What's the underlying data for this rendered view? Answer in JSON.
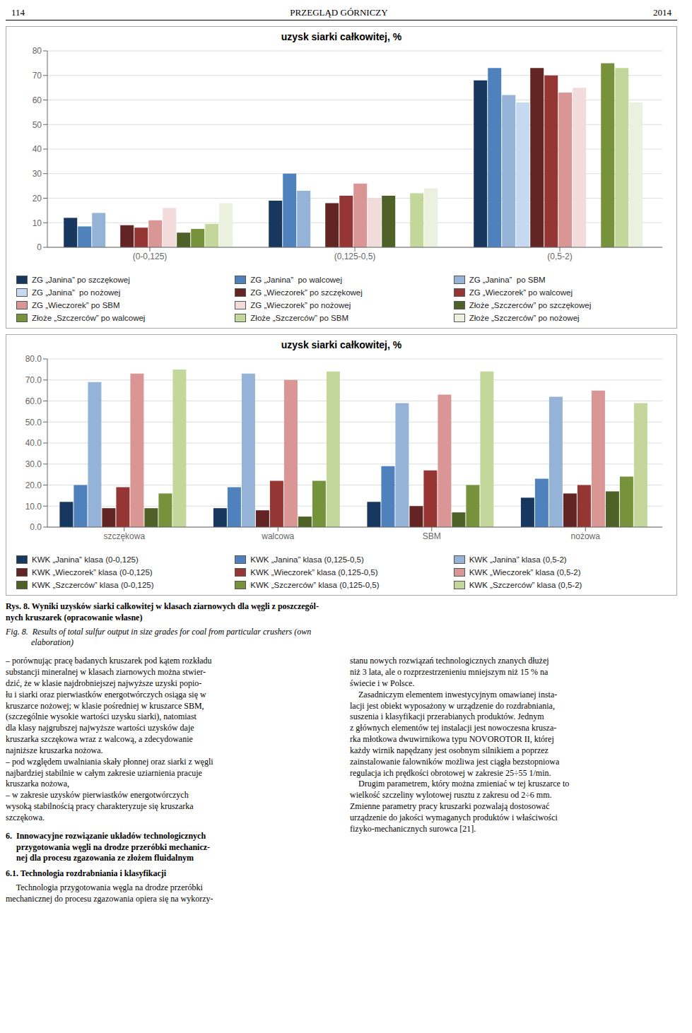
{
  "chart_data": [
    {
      "type": "bar",
      "title": "uzysk siarki całkowitej, %",
      "categories": [
        "(0-0,125)",
        "(0,125-0,5)",
        "(0,5-2)"
      ],
      "series": [
        {
          "name": "ZG „Janina” po szczękowej",
          "color": "#17375E",
          "values": [
            12,
            19,
            68
          ]
        },
        {
          "name": "ZG „Janina”  po walcowej",
          "color": "#4F81BD",
          "values": [
            8.5,
            30,
            73
          ]
        },
        {
          "name": "ZG „Janina”  po SBM",
          "color": "#95B3D7",
          "values": [
            14,
            23,
            62
          ]
        },
        {
          "name": "ZG „Janina”  po nożowej",
          "color": "#C5D9F1",
          "values": [
            null,
            null,
            59
          ]
        },
        {
          "name": "ZG „Wieczorek” po szczękowej",
          "color": "#632523",
          "values": [
            9,
            18,
            73
          ]
        },
        {
          "name": "ZG „Wieczorek” po walcowej",
          "color": "#963634",
          "values": [
            8,
            21,
            70
          ]
        },
        {
          "name": "ZG „Wieczorek” po SBM",
          "color": "#D99694",
          "values": [
            11,
            26,
            63
          ]
        },
        {
          "name": "ZG „Wieczorek” po nożowej",
          "color": "#F2DCDB",
          "values": [
            16,
            20,
            65
          ]
        },
        {
          "name": "Złoże „Szczerców” po szczękowej",
          "color": "#4E6228",
          "values": [
            6,
            21,
            null
          ]
        },
        {
          "name": "Złoże „Szczerców” po walcowej",
          "color": "#76933C",
          "values": [
            7.5,
            null,
            75
          ]
        },
        {
          "name": "Złoże „Szczerców” po SBM",
          "color": "#C4D79B",
          "values": [
            9.5,
            22,
            73
          ]
        },
        {
          "name": "Złoże „Szczerców” po nożowej",
          "color": "#EBF1DE",
          "values": [
            18,
            24,
            59
          ]
        }
      ],
      "ylim": [
        0,
        80
      ],
      "yticks": [
        0,
        10,
        20,
        30,
        40,
        50,
        60,
        70,
        80
      ],
      "grid": true,
      "annotations": [
        "114",
        "PRZEGLĄD GÓRNICZY",
        "2014"
      ]
    },
    {
      "type": "bar",
      "title": "uzysk siarki całkowitej, %",
      "categories": [
        "szczękowa",
        "walcowa",
        "SBM",
        "nożowa"
      ],
      "series": [
        {
          "name": "KWK „Janina” klasa (0-0,125)",
          "color": "#17375E",
          "values": [
            12,
            9,
            12,
            14
          ]
        },
        {
          "name": "KWK „Janina” klasa (0,125-0,5)",
          "color": "#4F81BD",
          "values": [
            20,
            19,
            29,
            23
          ]
        },
        {
          "name": "KWK „Janina” klasa (0,5-2)",
          "color": "#95B3D7",
          "values": [
            69,
            73,
            59,
            62
          ]
        },
        {
          "name": "KWK „Wieczorek” klasa (0-0,125)",
          "color": "#632523",
          "values": [
            9,
            8,
            10,
            16
          ]
        },
        {
          "name": "KWK „Wieczorek” klasa (0,125-0,5)",
          "color": "#963634",
          "values": [
            19,
            22,
            27,
            20
          ]
        },
        {
          "name": "KWK „Wieczorek” klasa (0,5-2)",
          "color": "#D99694",
          "values": [
            73,
            70,
            63,
            65
          ]
        },
        {
          "name": "KWK „Szczerców” klasa (0-0,125)",
          "color": "#4E6228",
          "values": [
            9,
            5,
            7,
            17
          ]
        },
        {
          "name": "KWK „Szczerców” klasa (0,125-0,5)",
          "color": "#76933C",
          "values": [
            16,
            22,
            20,
            24
          ]
        },
        {
          "name": "KWK „Szczerców” klasa (0,5-2)",
          "color": "#C4D79B",
          "values": [
            75,
            74,
            74,
            59
          ]
        }
      ],
      "ylim": [
        0,
        80
      ],
      "yticks": [
        {
          "value": 0,
          "label": "0.0"
        },
        {
          "value": 10,
          "label": "10.0"
        },
        {
          "value": 20,
          "label": "20.0"
        },
        {
          "value": 30,
          "label": "30.0"
        },
        {
          "value": 40,
          "label": "40.0"
        },
        {
          "value": 50,
          "label": "50.0"
        },
        {
          "value": 60,
          "label": "60.0"
        },
        {
          "value": 70,
          "label": "70.0"
        },
        {
          "value": 80,
          "label": "80.0"
        }
      ],
      "grid": true,
      "annotations": [
        "Rys. 8. Wyniki uzysków siarki całkowitej w klasach ziarnowych dla węgli z poszczegól-\nnych kruszarek (opracowanie własne)",
        "Fig. 8.  Results of total sulfur output in size grades for coal from particular crushers (own\n            elaboration)",
        "– porównując pracę badanych kruszarek pod kątem rozkładu\nsubstancji mineralnej w klasach ziarnowych można stwier-\ndzić, że w klasie najdrobniejszej najwyższe uzyski popio-\nłu i siarki oraz pierwiastków energotwórczych osiąga się w\nkruszarce nożowej; w klasie pośredniej w kruszarce SBM,\n(szczególnie wysokie wartości uzysku siarki), natomiast\ndla klasy najgrubszej najwyższe wartości uzysków daje\nkruszarka szczękowa wraz z walcową, a zdecydowanie\nnajniższe kruszarka nożowa.\n– pod względem uwalniania skały płonnej oraz siarki z węgli\nnajbardziej stabilnie w całym zakresie uziarnienia pracuje\nkruszarka nożowa,\n– w zakresie uzysków pierwiastków energotwórczych\nwysoką stabilnością pracy charakteryzuje się kruszarka\nszczękowa.",
        "stanu nowych rozwiązań technologicznych znanych dłużej\nniż 3 lata, ale o rozprzestrzenieniu mniejszym niż 15 % na\nświecie i w Polsce.\n    Zasadniczym elementem inwestycyjnym omawianej insta-\nlacji jest obiekt wyposażony w urządzenie do rozdrabniania,\nsuszenia i klasyfikacji przerabianych produktów. Jednym\nz głównych elementów tej instalacji jest nowoczesna krusza-\nrka młotkowa dwuwirnikowa typu NOVOROTOR II, której\nkażdy wirnik napędzany jest osobnym silnikiem a poprzez\nzainstalowanie falowników możliwa jest ciągła bezstopniowa\nregulacja ich prędkości obrotowej w zakresie 25÷55 1/min.\n    Drugim parametrem, który można zmieniać w tej kruszarce to\nwielkość szczeliny wylotowej rusztu z zakresu od 2÷6 mm.\nZmienne parametry pracy kruszarki pozwalają dostosować\nurządzenie do jakości wymaganych produktów i właściwości\nfizyko-mechanicznych surowca [21].",
        "6.  Innowacyjne rozwiązanie układów technologicznych\n     przygotowania węgli na drodze przeróbki mechanicz-\n     nej dla procesu zgazowania ze złożem fluidalnym",
        "6.1. Technologia rozdrabniania i klasyfikacji",
        "     Technologia przygotowania węgla na drodze przeróbki\nmechanicznej do procesu zgazowania opiera się na wykorzy-"
      ]
    }
  ]
}
